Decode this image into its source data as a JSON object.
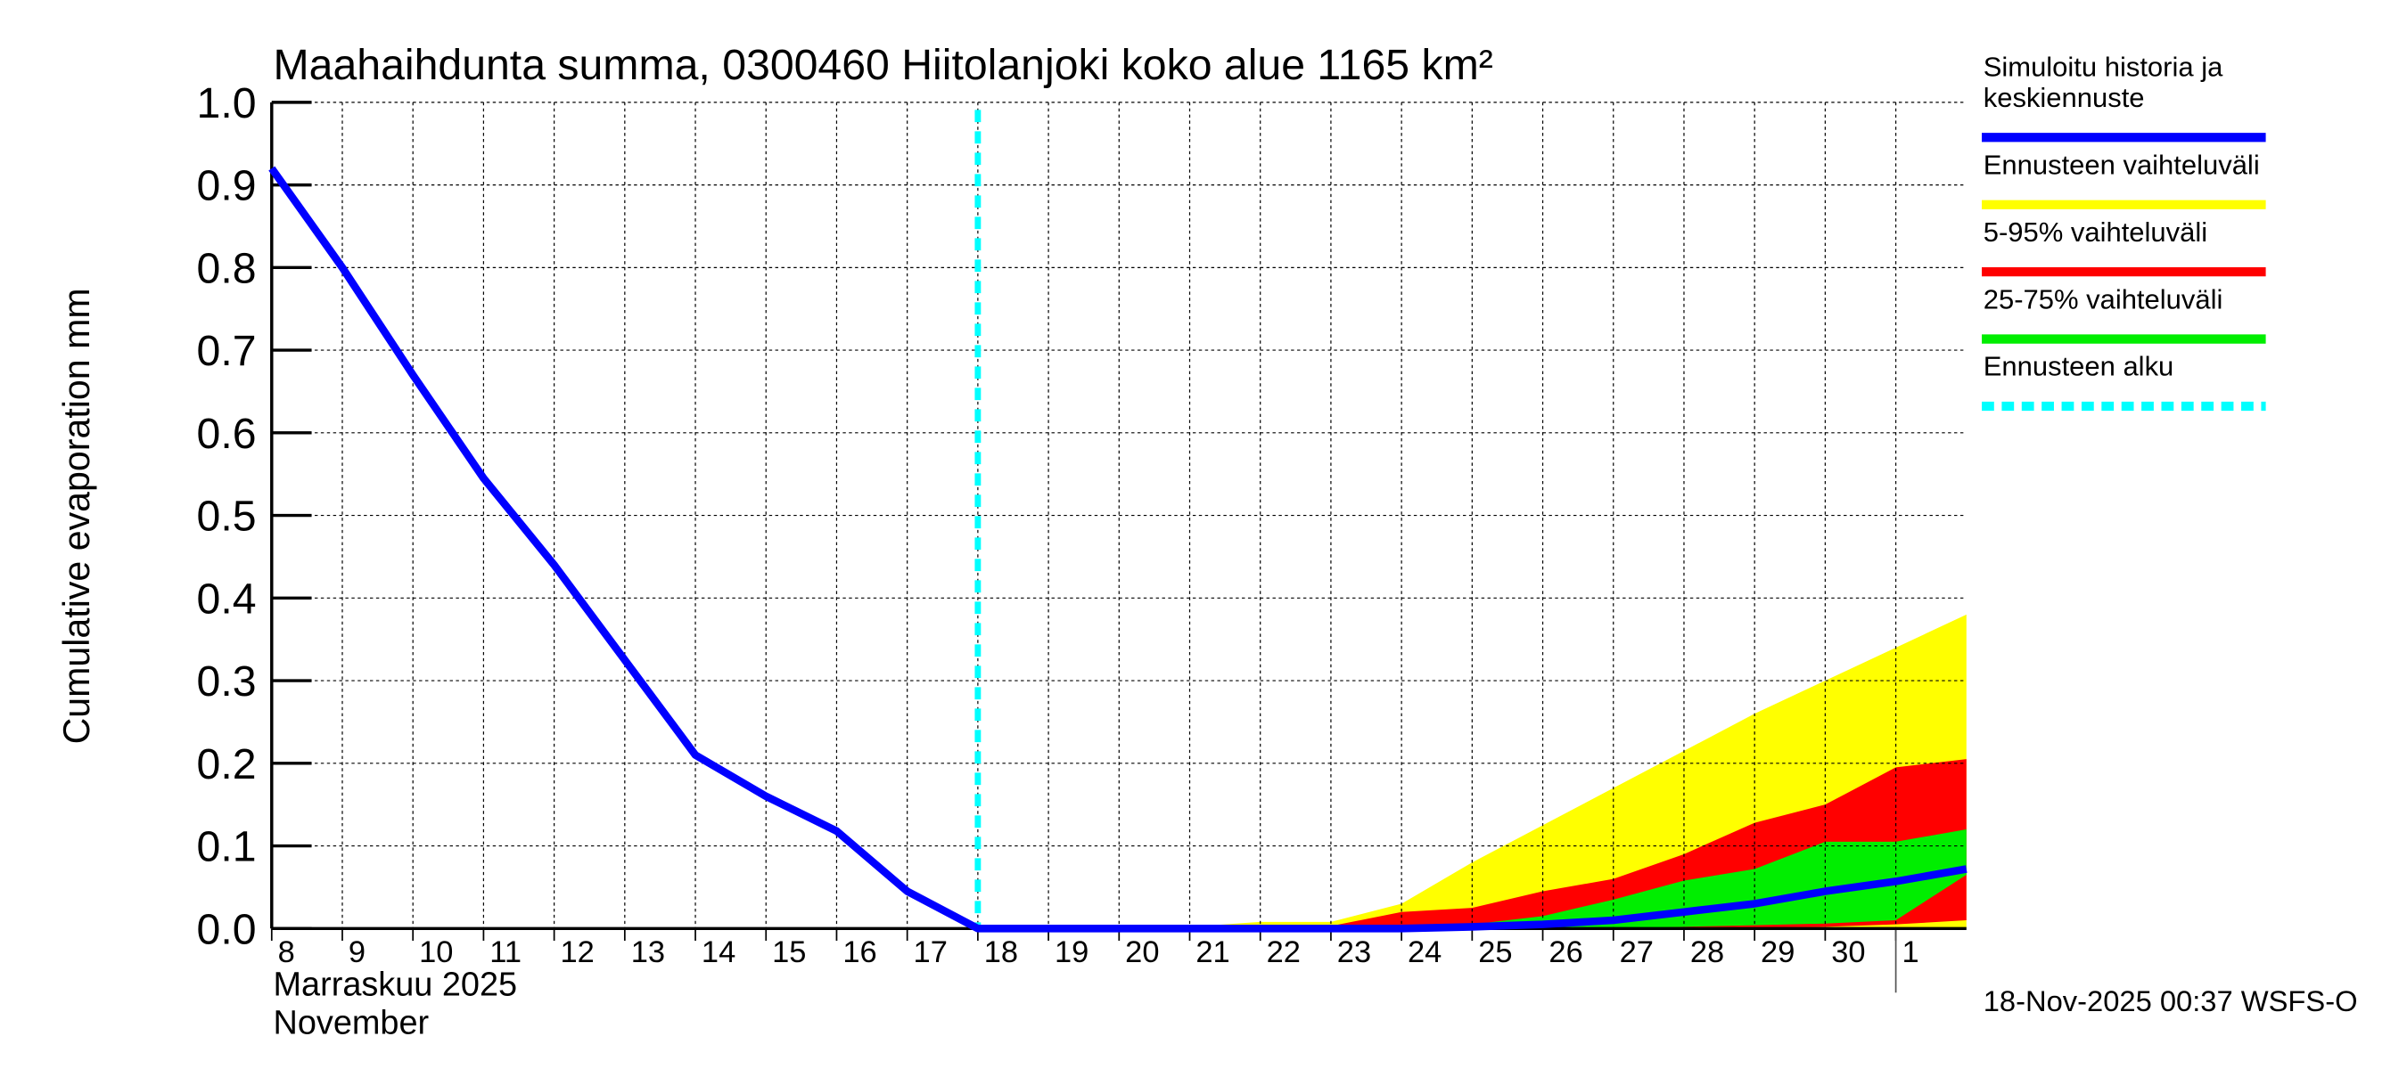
{
  "chart_data": {
    "type": "area",
    "title": "Maahaihdunta summa, 0300460 Hiitolanjoki koko alue 1165 km²",
    "ylabel": "Cumulative evaporation   mm",
    "xlabel_lines": [
      "Marraskuu 2025",
      "November"
    ],
    "ylim": [
      0,
      1.0
    ],
    "yticks": [
      "0.0",
      "0.1",
      "0.2",
      "0.3",
      "0.4",
      "0.5",
      "0.6",
      "0.7",
      "0.8",
      "0.9",
      "1.0"
    ],
    "x_tick_labels": [
      "8",
      "9",
      "10",
      "11",
      "12",
      "13",
      "14",
      "15",
      "16",
      "17",
      "18",
      "19",
      "20",
      "21",
      "22",
      "23",
      "24",
      "25",
      "26",
      "27",
      "28",
      "29",
      "30",
      "1"
    ],
    "x": [
      "2025-11-08",
      "2025-11-09",
      "2025-11-10",
      "2025-11-11",
      "2025-11-12",
      "2025-11-13",
      "2025-11-14",
      "2025-11-15",
      "2025-11-16",
      "2025-11-17",
      "2025-11-18",
      "2025-11-19",
      "2025-11-20",
      "2025-11-21",
      "2025-11-22",
      "2025-11-23",
      "2025-11-24",
      "2025-11-25",
      "2025-11-26",
      "2025-11-27",
      "2025-11-28",
      "2025-11-29",
      "2025-11-30",
      "2025-12-01",
      "2025-12-02"
    ],
    "grid": true,
    "legend_position": "right",
    "forecast_start": "2025-11-18",
    "series": [
      {
        "name": "Ennusteen vaihteluväli",
        "color": "#ffff00",
        "kind": "band",
        "lower": [
          null,
          null,
          null,
          null,
          null,
          null,
          null,
          null,
          null,
          null,
          0,
          0,
          0,
          0,
          0,
          0,
          0,
          0,
          0,
          0,
          0,
          0,
          0,
          0,
          0
        ],
        "upper": [
          null,
          null,
          null,
          null,
          null,
          null,
          null,
          null,
          null,
          null,
          0,
          0,
          0,
          0.002,
          0.008,
          0.008,
          0.03,
          0.08,
          0.125,
          0.17,
          0.215,
          0.26,
          0.3,
          0.34,
          0.38
        ]
      },
      {
        "name": "5-95% vaihteluväli",
        "color": "#ff0000",
        "kind": "band",
        "lower": [
          null,
          null,
          null,
          null,
          null,
          null,
          null,
          null,
          null,
          null,
          0,
          0,
          0,
          0,
          0,
          0,
          0,
          0,
          0,
          0,
          0,
          0.001,
          0.002,
          0.005,
          0.01
        ],
        "upper": [
          null,
          null,
          null,
          null,
          null,
          null,
          null,
          null,
          null,
          null,
          0,
          0,
          0,
          0,
          0,
          0.003,
          0.02,
          0.025,
          0.045,
          0.06,
          0.09,
          0.128,
          0.15,
          0.195,
          0.205
        ]
      },
      {
        "name": "25-75% vaihteluväli",
        "color": "#00ee00",
        "kind": "band",
        "lower": [
          null,
          null,
          null,
          null,
          null,
          null,
          null,
          null,
          null,
          null,
          0,
          0,
          0,
          0,
          0,
          0,
          0,
          0,
          0,
          0,
          0.002,
          0.004,
          0.006,
          0.01,
          0.065
        ],
        "upper": [
          null,
          null,
          null,
          null,
          null,
          null,
          null,
          null,
          null,
          null,
          0,
          0,
          0,
          0,
          0,
          0,
          0.002,
          0.005,
          0.015,
          0.035,
          0.058,
          0.072,
          0.105,
          0.105,
          0.12
        ]
      },
      {
        "name": "Simuloitu historia ja keskiennuste",
        "color": "#0000ff",
        "kind": "line",
        "values": [
          0.92,
          0.8,
          0.67,
          0.545,
          0.44,
          0.325,
          0.21,
          0.16,
          0.118,
          0.045,
          0,
          0,
          0,
          0,
          0,
          0,
          0,
          0.002,
          0.005,
          0.01,
          0.02,
          0.03,
          0.045,
          0.057,
          0.072
        ]
      },
      {
        "name": "Ennusteen alku",
        "color": "#00ffff",
        "kind": "vline"
      }
    ],
    "legend": [
      {
        "label": "Simuloitu historia ja",
        "label2": "keskiennuste",
        "color": "#0000ff",
        "style": "line"
      },
      {
        "label": "Ennusteen vaihteluväli",
        "color": "#ffff00",
        "style": "line"
      },
      {
        "label": "5-95% vaihteluväli",
        "color": "#ff0000",
        "style": "line"
      },
      {
        "label": "25-75% vaihteluväli",
        "color": "#00ee00",
        "style": "line"
      },
      {
        "label": "Ennusteen alku",
        "color": "#00ffff",
        "style": "dashed"
      }
    ],
    "footer": "18-Nov-2025 00:37 WSFS-O"
  }
}
